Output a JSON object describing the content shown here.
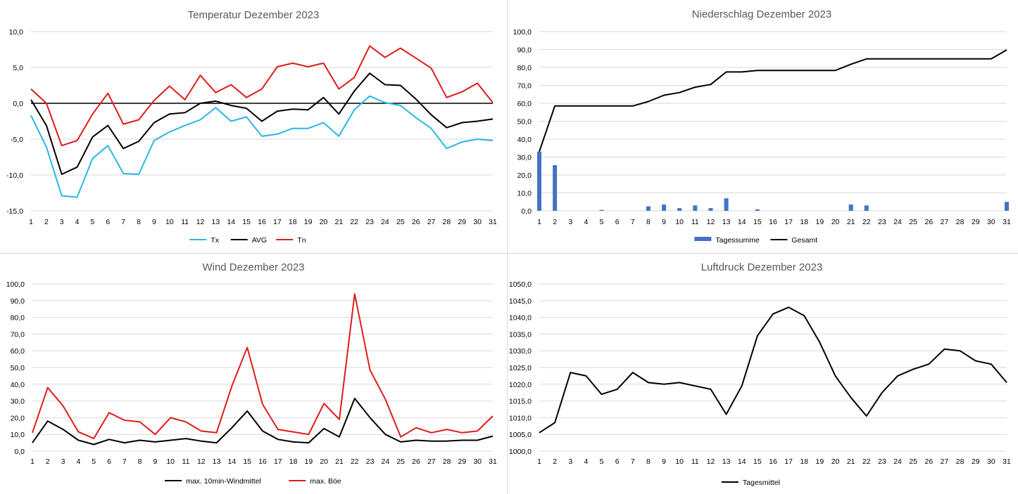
{
  "colors": {
    "tx": "#29b6e6",
    "avg": "#000000",
    "tn": "#e01b1b",
    "bar": "#4472c4",
    "line": "#000000",
    "grid": "#d9d9d9"
  },
  "chart_data": [
    {
      "type": "line",
      "title": "Temperatur Dezember 2023",
      "categories": [
        "1",
        "2",
        "3",
        "4",
        "5",
        "6",
        "7",
        "8",
        "9",
        "10",
        "11",
        "12",
        "13",
        "14",
        "15",
        "16",
        "17",
        "18",
        "19",
        "20",
        "21",
        "22",
        "23",
        "24",
        "25",
        "26",
        "27",
        "28",
        "29",
        "30",
        "31"
      ],
      "yticks": [
        "10,0",
        "5,0",
        "0,0",
        "-5,0",
        "-10,0",
        "-15,0"
      ],
      "ylim": [
        -15,
        10
      ],
      "grid": true,
      "legend": "bottom",
      "series": [
        {
          "name": "Tx",
          "color": "#29b6e6",
          "values": [
            -1.7,
            -6.1,
            -12.9,
            -13.1,
            -7.7,
            -5.9,
            -9.8,
            -9.9,
            -5.2,
            -4.0,
            -3.1,
            -2.3,
            -0.6,
            -2.5,
            -1.9,
            -4.6,
            -4.3,
            -3.5,
            -3.5,
            -2.7,
            -4.6,
            -0.9,
            1.0,
            0.1,
            -0.3,
            -2.0,
            -3.5,
            -6.3,
            -5.4,
            -5.0,
            -5.2
          ]
        },
        {
          "name": "AVG",
          "color": "#000000",
          "values": [
            0.5,
            -3.1,
            -9.9,
            -8.9,
            -4.7,
            -3.1,
            -6.3,
            -5.3,
            -2.7,
            -1.5,
            -1.3,
            0.0,
            0.3,
            -0.3,
            -0.7,
            -2.5,
            -1.1,
            -0.8,
            -0.9,
            0.8,
            -1.5,
            1.7,
            4.2,
            2.6,
            2.5,
            0.6,
            -1.6,
            -3.4,
            -2.7,
            -2.5,
            -2.2
          ]
        },
        {
          "name": "Tn",
          "color": "#e01b1b",
          "values": [
            2.0,
            0.0,
            -5.9,
            -5.2,
            -1.5,
            1.4,
            -2.9,
            -2.3,
            0.4,
            2.4,
            0.5,
            3.9,
            1.5,
            2.6,
            0.8,
            2.0,
            5.1,
            5.6,
            5.1,
            5.6,
            2.0,
            3.6,
            8.0,
            6.4,
            7.7,
            6.3,
            4.9,
            0.8,
            1.6,
            2.8,
            0.1
          ]
        }
      ],
      "reference_line": 0
    },
    {
      "type": "bar+line",
      "title": "Niederschlag Dezember 2023",
      "categories": [
        "1",
        "2",
        "3",
        "4",
        "5",
        "6",
        "7",
        "8",
        "9",
        "10",
        "11",
        "12",
        "13",
        "14",
        "15",
        "16",
        "17",
        "18",
        "19",
        "20",
        "21",
        "22",
        "23",
        "24",
        "25",
        "26",
        "27",
        "28",
        "29",
        "30",
        "31"
      ],
      "yticks": [
        "100,0",
        "90,0",
        "80,0",
        "70,0",
        "60,0",
        "50,0",
        "40,0",
        "30,0",
        "20,0",
        "10,0",
        "0,0"
      ],
      "ylim": [
        0,
        100
      ],
      "grid": true,
      "legend": "bottom",
      "series": [
        {
          "name": "Tagessumme",
          "kind": "bar",
          "color": "#4472c4",
          "values": [
            33.0,
            25.5,
            0,
            0,
            0.5,
            0,
            0,
            2.5,
            3.5,
            1.5,
            3.0,
            1.5,
            7.0,
            0,
            0.8,
            0,
            0,
            0,
            0,
            0,
            3.5,
            3.0,
            0,
            0,
            0,
            0,
            0,
            0,
            0,
            0,
            5.0
          ]
        },
        {
          "name": "Gesamt",
          "kind": "line",
          "color": "#000000",
          "values": [
            33.0,
            58.5,
            58.5,
            58.5,
            58.5,
            58.5,
            58.5,
            61.0,
            64.5,
            66.0,
            69.0,
            70.5,
            77.5,
            77.5,
            78.3,
            78.3,
            78.3,
            78.3,
            78.3,
            78.3,
            81.8,
            84.8,
            84.8,
            84.8,
            84.8,
            84.8,
            84.8,
            84.8,
            84.8,
            84.8,
            89.8
          ]
        }
      ]
    },
    {
      "type": "line",
      "title": "Wind Dezember 2023",
      "categories": [
        "1",
        "2",
        "3",
        "4",
        "5",
        "6",
        "7",
        "8",
        "9",
        "10",
        "11",
        "12",
        "13",
        "14",
        "15",
        "16",
        "17",
        "18",
        "19",
        "20",
        "21",
        "22",
        "23",
        "24",
        "25",
        "26",
        "27",
        "28",
        "29",
        "30",
        "31"
      ],
      "yticks": [
        "100,0",
        "90,0",
        "80,0",
        "70,0",
        "60,0",
        "50,0",
        "40,0",
        "30,0",
        "20,0",
        "10,0",
        "0,0"
      ],
      "ylim": [
        0,
        100
      ],
      "grid": true,
      "legend": "bottom",
      "series": [
        {
          "name": "max. 10min-Windmittel",
          "color": "#000000",
          "values": [
            5.0,
            18.0,
            13.0,
            6.5,
            4.0,
            7.0,
            5.0,
            6.5,
            5.5,
            6.5,
            7.5,
            6.0,
            5.0,
            14.0,
            24.0,
            12.0,
            7.0,
            5.5,
            5.0,
            13.5,
            8.5,
            31.5,
            20.0,
            10.0,
            5.5,
            6.5,
            6.0,
            6.0,
            6.5,
            6.5,
            9.0
          ]
        },
        {
          "name": "max. Böe",
          "color": "#e01b1b",
          "values": [
            11.0,
            38.0,
            27.0,
            11.5,
            7.5,
            23.0,
            18.5,
            17.5,
            10.0,
            20.0,
            17.5,
            12.0,
            11.0,
            39.0,
            62.0,
            28.0,
            13.0,
            11.5,
            10.0,
            28.5,
            19.0,
            94.0,
            48.5,
            31.0,
            8.5,
            14.0,
            11.0,
            13.0,
            11.0,
            12.0,
            21.0
          ]
        }
      ]
    },
    {
      "type": "line",
      "title": "Luftdruck Dezember 2023",
      "categories": [
        "1",
        "2",
        "3",
        "4",
        "5",
        "6",
        "7",
        "8",
        "9",
        "10",
        "11",
        "12",
        "13",
        "14",
        "15",
        "16",
        "17",
        "18",
        "19",
        "20",
        "21",
        "22",
        "23",
        "24",
        "25",
        "26",
        "27",
        "28",
        "29",
        "30",
        "31"
      ],
      "yticks": [
        "1050,0",
        "1045,0",
        "1040,0",
        "1035,0",
        "1030,0",
        "1025,0",
        "1020,0",
        "1015,0",
        "1010,0",
        "1005,0",
        "1000,0"
      ],
      "ylim": [
        1000,
        1050
      ],
      "grid": true,
      "legend": "bottom",
      "series": [
        {
          "name": "Tagesmittel",
          "color": "#000000",
          "values": [
            1005.5,
            1008.5,
            1023.5,
            1022.5,
            1017.0,
            1018.5,
            1023.5,
            1020.5,
            1020.0,
            1020.5,
            1019.5,
            1018.5,
            1011.0,
            1019.5,
            1034.5,
            1041.0,
            1043.0,
            1040.5,
            1032.5,
            1022.5,
            1016.0,
            1010.5,
            1017.5,
            1022.5,
            1024.5,
            1026.0,
            1030.5,
            1030.0,
            1027.0,
            1026.0,
            1020.5
          ]
        }
      ]
    }
  ]
}
